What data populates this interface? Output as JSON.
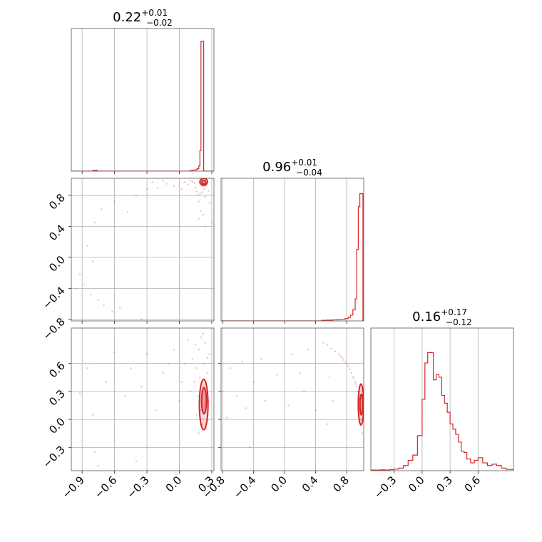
{
  "colors": {
    "series": "#d62728",
    "grid": "#b0b0b0",
    "frame": "#555555"
  },
  "chart_data": {
    "type": "corner",
    "grid": true,
    "parameters": [
      {
        "title_value": "0.22",
        "title_plus": "+0.01",
        "title_minus": "−0.02",
        "range": [
          -1.0,
          0.32
        ],
        "ticks": [
          {
            "v": -0.9,
            "label": "−0.9"
          },
          {
            "v": -0.6,
            "label": "−0.6"
          },
          {
            "v": -0.3,
            "label": "−0.3"
          },
          {
            "v": 0.0,
            "label": "0.0"
          },
          {
            "v": 0.3,
            "label": "0.3"
          }
        ],
        "histogram": {
          "edges": [
            0.1,
            0.12,
            0.14,
            0.16,
            0.17,
            0.18,
            0.19,
            0.2,
            0.21,
            0.215,
            0.22,
            0.225,
            0.23,
            0.235,
            0.24,
            0.25,
            0.26
          ],
          "counts": [
            0.005,
            0.008,
            0.01,
            0.015,
            0.02,
            0.04,
            0.16,
            1.0,
            1.0,
            1.0,
            1.0,
            0.0,
            0.0,
            0.0,
            0.0,
            0.0
          ],
          "outlier_bins": [
            {
              "x0": -0.8,
              "x1": -0.76,
              "h": 0.006
            }
          ]
        }
      },
      {
        "title_value": "0.96",
        "title_plus": "+0.01",
        "title_minus": "−0.04",
        "range": [
          -0.82,
          1.02
        ],
        "ticks": [
          {
            "v": -0.8,
            "label": "−0.8"
          },
          {
            "v": -0.4,
            "label": "−0.4"
          },
          {
            "v": 0.0,
            "label": "0.0"
          },
          {
            "v": 0.4,
            "label": "0.4"
          },
          {
            "v": 0.8,
            "label": "0.8"
          }
        ],
        "histogram": {
          "edges": [
            0.48,
            0.55,
            0.62,
            0.68,
            0.74,
            0.78,
            0.82,
            0.85,
            0.88,
            0.91,
            0.93,
            0.95,
            0.97,
            0.99,
            1.01
          ],
          "counts": [
            0.005,
            0.006,
            0.008,
            0.01,
            0.012,
            0.018,
            0.028,
            0.045,
            0.085,
            0.17,
            0.55,
            0.88,
            0.98,
            0.98
          ]
        }
      },
      {
        "title_value": "0.16",
        "title_plus": "+0.17",
        "title_minus": "−0.12",
        "range": [
          -0.55,
          0.98
        ],
        "ticks": [
          {
            "v": -0.3,
            "label": "−0.3"
          },
          {
            "v": 0.0,
            "label": "0.0"
          },
          {
            "v": 0.3,
            "label": "0.3"
          },
          {
            "v": 0.6,
            "label": "0.6"
          }
        ],
        "histogram": {
          "edges": [
            -0.55,
            -0.5,
            -0.45,
            -0.4,
            -0.35,
            -0.3,
            -0.25,
            -0.2,
            -0.15,
            -0.1,
            -0.05,
            0.0,
            0.03,
            0.06,
            0.09,
            0.12,
            0.15,
            0.18,
            0.21,
            0.24,
            0.27,
            0.3,
            0.33,
            0.36,
            0.39,
            0.42,
            0.45,
            0.48,
            0.52,
            0.56,
            0.6,
            0.65,
            0.7,
            0.75,
            0.8,
            0.85,
            0.9,
            0.98
          ],
          "counts": [
            0.005,
            0.004,
            0.006,
            0.005,
            0.008,
            0.012,
            0.02,
            0.04,
            0.08,
            0.12,
            0.27,
            0.55,
            0.83,
            0.91,
            0.91,
            0.7,
            0.74,
            0.72,
            0.58,
            0.52,
            0.45,
            0.36,
            0.32,
            0.28,
            0.22,
            0.15,
            0.14,
            0.09,
            0.06,
            0.08,
            0.1,
            0.06,
            0.04,
            0.05,
            0.04,
            0.02,
            0.01
          ]
        }
      }
    ],
    "scatter_pairs": [
      {
        "xparam": 0,
        "yparam": 1,
        "points": [
          [
            -0.95,
            -0.4
          ],
          [
            -0.92,
            -0.22
          ],
          [
            -0.88,
            -0.35
          ],
          [
            -0.82,
            -0.48
          ],
          [
            -0.75,
            -0.55
          ],
          [
            -0.7,
            -0.62
          ],
          [
            -0.62,
            -0.7
          ],
          [
            -0.55,
            -0.65
          ],
          [
            -0.85,
            0.15
          ],
          [
            -0.8,
            -0.05
          ],
          [
            -0.78,
            0.45
          ],
          [
            -0.72,
            0.62
          ],
          [
            -0.6,
            0.72
          ],
          [
            -0.48,
            0.58
          ],
          [
            -0.4,
            0.8
          ],
          [
            -0.3,
            0.88
          ],
          [
            -0.2,
            0.9
          ],
          [
            -0.12,
            0.95
          ],
          [
            -0.35,
            -0.8
          ],
          [
            -0.05,
            0.92
          ],
          [
            0.02,
            0.88
          ],
          [
            0.08,
            0.94
          ],
          [
            0.12,
            0.98
          ],
          [
            0.15,
            0.9
          ],
          [
            0.16,
            0.85
          ],
          [
            0.17,
            0.8
          ],
          [
            0.18,
            0.72
          ],
          [
            0.19,
            0.96
          ],
          [
            0.2,
            0.99
          ],
          [
            0.21,
            0.92
          ],
          [
            0.22,
            0.97
          ],
          [
            0.23,
            0.88
          ],
          [
            0.24,
            0.78
          ],
          [
            0.25,
            0.93
          ],
          [
            0.26,
            0.98
          ],
          [
            0.27,
            0.86
          ],
          [
            0.28,
            0.7
          ],
          [
            0.2,
            0.6
          ],
          [
            0.18,
            0.5
          ],
          [
            0.22,
            0.55
          ],
          [
            0.3,
            0.45
          ],
          [
            0.24,
            0.4
          ],
          [
            0.14,
            0.96
          ],
          [
            0.1,
            0.99
          ],
          [
            0.05,
            0.97
          ],
          [
            -0.15,
            0.99
          ],
          [
            -0.25,
            0.97
          ],
          [
            0.19,
            0.82
          ],
          [
            0.21,
            0.84
          ],
          [
            0.23,
            0.92
          ]
        ],
        "contours": [
          {
            "cx": 0.225,
            "cy": 0.975,
            "rx": 0.035,
            "ry": 0.045
          },
          {
            "cx": 0.225,
            "cy": 0.97,
            "rx": 0.018,
            "ry": 0.025
          }
        ]
      },
      {
        "xparam": 0,
        "yparam": 2,
        "points": [
          [
            -0.92,
            0.28
          ],
          [
            -0.85,
            0.55
          ],
          [
            -0.8,
            0.05
          ],
          [
            -0.78,
            -0.35
          ],
          [
            -0.75,
            -0.5
          ],
          [
            -0.68,
            0.4
          ],
          [
            -0.6,
            0.72
          ],
          [
            -0.5,
            0.25
          ],
          [
            -0.45,
            0.55
          ],
          [
            -0.4,
            -0.45
          ],
          [
            -0.35,
            0.35
          ],
          [
            -0.3,
            0.7
          ],
          [
            -0.22,
            0.1
          ],
          [
            -0.15,
            0.5
          ],
          [
            -0.1,
            0.6
          ],
          [
            -0.05,
            0.75
          ],
          [
            0.0,
            0.2
          ],
          [
            0.02,
            0.4
          ],
          [
            0.05,
            0.6
          ],
          [
            0.08,
            0.85
          ],
          [
            0.1,
            0.3
          ],
          [
            0.12,
            0.65
          ],
          [
            0.15,
            0.8
          ],
          [
            0.16,
            0.55
          ],
          [
            0.17,
            0.25
          ],
          [
            0.18,
            0.75
          ],
          [
            0.19,
            0.45
          ],
          [
            0.2,
            0.1
          ],
          [
            0.21,
            -0.05
          ],
          [
            0.22,
            0.35
          ],
          [
            0.23,
            0.6
          ],
          [
            0.24,
            0.15
          ],
          [
            0.25,
            -0.1
          ],
          [
            0.26,
            0.5
          ],
          [
            0.27,
            0.2
          ],
          [
            0.28,
            0.7
          ],
          [
            0.2,
            0.88
          ],
          [
            0.22,
            0.92
          ],
          [
            0.18,
            -0.15
          ],
          [
            0.16,
            0.05
          ],
          [
            0.14,
            0.4
          ],
          [
            0.24,
            0.82
          ],
          [
            0.26,
            0.66
          ]
        ],
        "contours": [
          {
            "cx": 0.225,
            "cy": 0.16,
            "rx": 0.04,
            "ry": 0.27
          },
          {
            "cx": 0.228,
            "cy": 0.2,
            "rx": 0.022,
            "ry": 0.14
          }
        ]
      },
      {
        "xparam": 1,
        "yparam": 2,
        "points": [
          [
            -0.8,
            0.3
          ],
          [
            -0.75,
            0.02
          ],
          [
            -0.7,
            0.55
          ],
          [
            -0.62,
            0.25
          ],
          [
            -0.55,
            0.62
          ],
          [
            -0.5,
            0.12
          ],
          [
            -0.45,
            -0.3
          ],
          [
            -0.4,
            0.4
          ],
          [
            -0.3,
            0.65
          ],
          [
            -0.25,
            0.2
          ],
          [
            -0.1,
            0.48
          ],
          [
            0.0,
            0.6
          ],
          [
            0.05,
            0.15
          ],
          [
            0.1,
            0.7
          ],
          [
            0.2,
            0.5
          ],
          [
            0.25,
            0.3
          ],
          [
            0.3,
            0.75
          ],
          [
            0.5,
            0.82
          ],
          [
            0.55,
            0.8
          ],
          [
            0.6,
            0.76
          ],
          [
            0.65,
            0.73
          ],
          [
            0.7,
            0.7
          ],
          [
            0.74,
            0.66
          ],
          [
            0.78,
            0.62
          ],
          [
            0.82,
            0.57
          ],
          [
            0.86,
            0.5
          ],
          [
            0.89,
            0.44
          ],
          [
            0.92,
            0.38
          ],
          [
            0.94,
            0.3
          ],
          [
            0.96,
            0.22
          ],
          [
            0.97,
            0.15
          ],
          [
            0.98,
            0.05
          ],
          [
            0.99,
            -0.05
          ],
          [
            1.0,
            -0.15
          ],
          [
            0.88,
            0.46
          ],
          [
            0.84,
            0.54
          ],
          [
            0.8,
            0.6
          ],
          [
            0.76,
            0.64
          ],
          [
            0.72,
            0.68
          ],
          [
            0.95,
            0.26
          ],
          [
            0.93,
            0.35
          ],
          [
            0.91,
            0.4
          ],
          [
            0.97,
            0.1
          ],
          [
            0.99,
            0.0
          ],
          [
            0.55,
            -0.05
          ],
          [
            0.4,
            0.1
          ],
          [
            0.62,
            0.2
          ],
          [
            0.58,
            0.45
          ]
        ],
        "contours": [
          {
            "cx": 0.985,
            "cy": 0.16,
            "rx": 0.035,
            "ry": 0.22
          },
          {
            "cx": 0.99,
            "cy": 0.16,
            "rx": 0.018,
            "ry": 0.11
          }
        ]
      }
    ]
  }
}
